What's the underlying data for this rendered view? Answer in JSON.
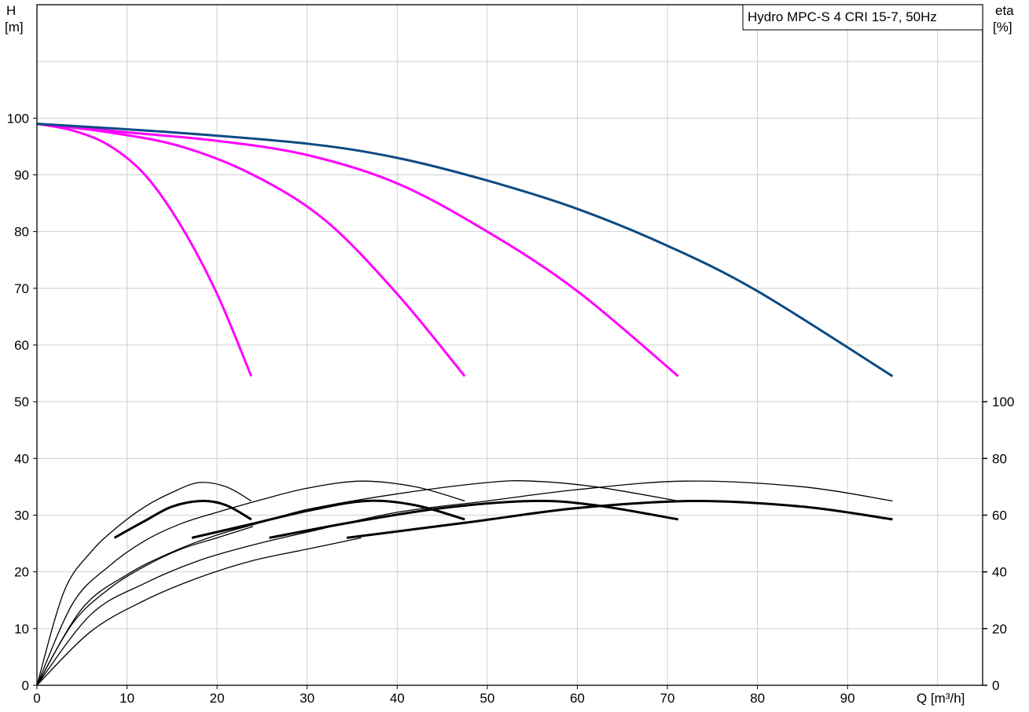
{
  "chart_data": {
    "type": "line",
    "title": "Hydro MPC-S 4 CRI 15-7, 50Hz",
    "x_axis": {
      "label": "Q [m³/h]",
      "range": [
        0,
        105
      ],
      "ticks": [
        0,
        10,
        20,
        30,
        40,
        50,
        60,
        70,
        80,
        90
      ]
    },
    "y_axis_left": {
      "label_top": "H",
      "label_unit": "[m]",
      "range": [
        0,
        120
      ],
      "ticks": [
        0,
        10,
        20,
        30,
        40,
        50,
        60,
        70,
        80,
        90,
        100
      ]
    },
    "y_axis_right": {
      "label_top": "eta",
      "label_unit": "[%]",
      "range": [
        0,
        100
      ],
      "note": "eta axis maps 0–100% onto H positions 0–50 m",
      "ticks": [
        0,
        20,
        40,
        60,
        80,
        100
      ]
    },
    "grid": true,
    "colors": {
      "head_partial": "#ff00ff",
      "head_full": "#0b4a82",
      "efficiency": "#000000"
    },
    "head_curves": [
      {
        "pumps": 1,
        "color": "#ff00ff",
        "points": [
          [
            0,
            99
          ],
          [
            4,
            97.8
          ],
          [
            8,
            95.2
          ],
          [
            12,
            90
          ],
          [
            16,
            81
          ],
          [
            20,
            69
          ],
          [
            23.8,
            54.5
          ]
        ]
      },
      {
        "pumps": 2,
        "color": "#ff00ff",
        "points": [
          [
            0,
            99
          ],
          [
            8,
            97.5
          ],
          [
            16,
            95
          ],
          [
            24,
            90
          ],
          [
            32,
            82
          ],
          [
            40,
            69
          ],
          [
            47.5,
            54.5
          ]
        ]
      },
      {
        "pumps": 3,
        "color": "#ff00ff",
        "points": [
          [
            0,
            99
          ],
          [
            10,
            97.5
          ],
          [
            20,
            96
          ],
          [
            30,
            93.5
          ],
          [
            40,
            88.5
          ],
          [
            50,
            80
          ],
          [
            60,
            69.5
          ],
          [
            71.2,
            54.5
          ]
        ]
      },
      {
        "pumps": 4,
        "color": "#0b4a82",
        "points": [
          [
            0,
            99
          ],
          [
            15,
            97.5
          ],
          [
            30,
            95.5
          ],
          [
            40,
            93
          ],
          [
            50,
            89
          ],
          [
            60,
            84
          ],
          [
            70,
            77.5
          ],
          [
            80,
            69.5
          ],
          [
            95,
            54.5
          ]
        ]
      }
    ],
    "efficiency_curves": [
      {
        "name": "",
        "points": [
          [
            0,
            0
          ],
          [
            3,
            33
          ],
          [
            6,
            47
          ],
          [
            9,
            56
          ],
          [
            12,
            63
          ],
          [
            15,
            68
          ],
          [
            18,
            71.5
          ],
          [
            21,
            70
          ],
          [
            23.8,
            65
          ]
        ]
      },
      {
        "name": "",
        "points": [
          [
            0,
            0
          ],
          [
            4,
            29
          ],
          [
            8,
            42
          ],
          [
            12,
            51
          ],
          [
            16,
            57
          ],
          [
            20,
            61
          ],
          [
            25,
            65.5
          ],
          [
            30,
            69.5
          ],
          [
            36,
            72
          ],
          [
            42,
            70
          ],
          [
            47.5,
            65
          ]
        ]
      },
      {
        "name": "",
        "points": [
          [
            0,
            0
          ],
          [
            5,
            27
          ],
          [
            10,
            39
          ],
          [
            15,
            47
          ],
          [
            20,
            53
          ],
          [
            25,
            57.5
          ],
          [
            30,
            62
          ],
          [
            40,
            67.5
          ],
          [
            50,
            71.5
          ],
          [
            55,
            72
          ],
          [
            62,
            70
          ],
          [
            71.2,
            65
          ]
        ]
      },
      {
        "name": "",
        "points": [
          [
            0,
            0
          ],
          [
            6,
            25
          ],
          [
            12,
            36
          ],
          [
            18,
            44
          ],
          [
            24,
            49.5
          ],
          [
            30,
            54
          ],
          [
            40,
            61
          ],
          [
            50,
            65
          ],
          [
            60,
            69
          ],
          [
            72,
            72
          ],
          [
            85,
            70
          ],
          [
            95,
            65
          ]
        ]
      },
      {
        "name": "",
        "points": [
          [
            0,
            0
          ],
          [
            4,
            22
          ],
          [
            8,
            34
          ],
          [
            12,
            42
          ],
          [
            16,
            48
          ],
          [
            20,
            52
          ],
          [
            24,
            56
          ]
        ]
      },
      {
        "name": "",
        "points": [
          [
            0,
            0
          ],
          [
            6,
            19
          ],
          [
            12,
            30
          ],
          [
            18,
            38
          ],
          [
            24,
            44
          ],
          [
            30,
            48
          ],
          [
            36,
            52
          ]
        ]
      }
    ],
    "efficiency_operating_curves": [
      {
        "name": "",
        "points": [
          [
            8.6,
            52
          ],
          [
            12,
            58
          ],
          [
            15,
            63
          ],
          [
            18.3,
            65
          ],
          [
            21,
            63.5
          ],
          [
            23.8,
            58.5
          ]
        ]
      },
      {
        "name": "",
        "points": [
          [
            17.2,
            52
          ],
          [
            24,
            57
          ],
          [
            30,
            61.5
          ],
          [
            36.5,
            65
          ],
          [
            42,
            63.5
          ],
          [
            47.5,
            58.5
          ]
        ]
      },
      {
        "name": "",
        "points": [
          [
            25.8,
            52
          ],
          [
            35,
            57.5
          ],
          [
            45,
            62.5
          ],
          [
            55,
            65
          ],
          [
            62,
            63.5
          ],
          [
            71.2,
            58.5
          ]
        ]
      },
      {
        "name": "",
        "points": [
          [
            34.4,
            52
          ],
          [
            48,
            57.5
          ],
          [
            60,
            62.5
          ],
          [
            73,
            65
          ],
          [
            85,
            63
          ],
          [
            95,
            58.5
          ]
        ]
      }
    ]
  }
}
